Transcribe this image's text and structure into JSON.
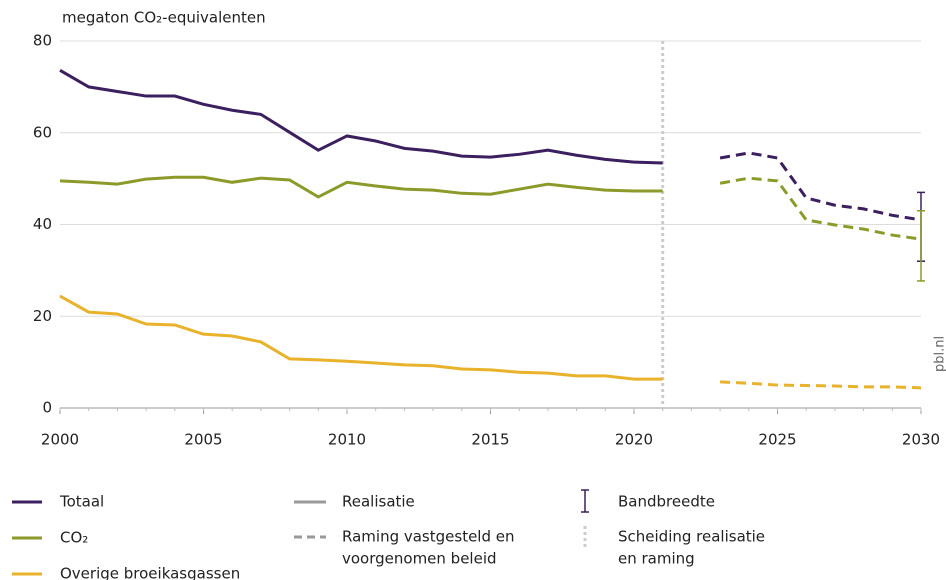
{
  "chart_data": {
    "type": "line",
    "y_label": "megaton CO₂-equivalenten",
    "source": "pbl.nl",
    "x": [
      2000,
      2001,
      2002,
      2003,
      2004,
      2005,
      2006,
      2007,
      2008,
      2009,
      2010,
      2011,
      2012,
      2013,
      2014,
      2015,
      2016,
      2017,
      2018,
      2019,
      2020,
      2021,
      2022,
      2023,
      2024,
      2025,
      2026,
      2027,
      2028,
      2029,
      2030
    ],
    "divider_x": 2021,
    "series": [
      {
        "name": "Totaal",
        "color": "#3b1f5e",
        "values": [
          73.6,
          70,
          69,
          68,
          68,
          66.2,
          64.9,
          64,
          60.1,
          56.2,
          59.3,
          58.2,
          56.6,
          56,
          54.9,
          54.7,
          55.3,
          56.2,
          55.1,
          54.2,
          53.6,
          53.4,
          null,
          54.5,
          55.6,
          54.5,
          45.8,
          44.2,
          43.4,
          42,
          41
        ],
        "band": [
          32,
          47
        ]
      },
      {
        "name": "CO₂",
        "color": "#8c9a2a",
        "values": [
          49.5,
          49.2,
          48.8,
          49.9,
          50.3,
          50.3,
          49.2,
          50.1,
          49.7,
          46,
          49.2,
          48.4,
          47.7,
          47.5,
          46.8,
          46.6,
          47.7,
          48.8,
          48.1,
          47.5,
          47.3,
          47.3,
          null,
          49,
          50.1,
          49.5,
          41,
          39.9,
          39,
          37.7,
          36.8
        ],
        "band": [
          27.7,
          43
        ]
      },
      {
        "name": "Overige broeikasgassen",
        "color": "#e8b22a",
        "values": [
          24.4,
          20.9,
          20.5,
          18.3,
          18.1,
          16.1,
          15.7,
          14.4,
          10.7,
          10.5,
          10.2,
          9.8,
          9.4,
          9.2,
          8.5,
          8.3,
          7.8,
          7.6,
          7,
          7,
          6.3,
          6.3,
          null,
          5.7,
          5.4,
          5,
          4.9,
          4.8,
          4.6,
          4.6,
          4.4
        ]
      }
    ],
    "xlim": [
      2000,
      2030
    ],
    "xticks": [
      2000,
      2005,
      2010,
      2015,
      2020,
      2025,
      2030
    ],
    "ylim": [
      0,
      80
    ],
    "yticks": [
      0,
      20,
      40,
      60,
      80
    ],
    "grid": true,
    "style_legend": {
      "realisation": "Realisatie",
      "projection": [
        "Raming vastgesteld en",
        "voorgenomen beleid"
      ],
      "band": "Bandbreedte",
      "divider": [
        "Scheiding realisatie",
        "en raming"
      ]
    }
  }
}
